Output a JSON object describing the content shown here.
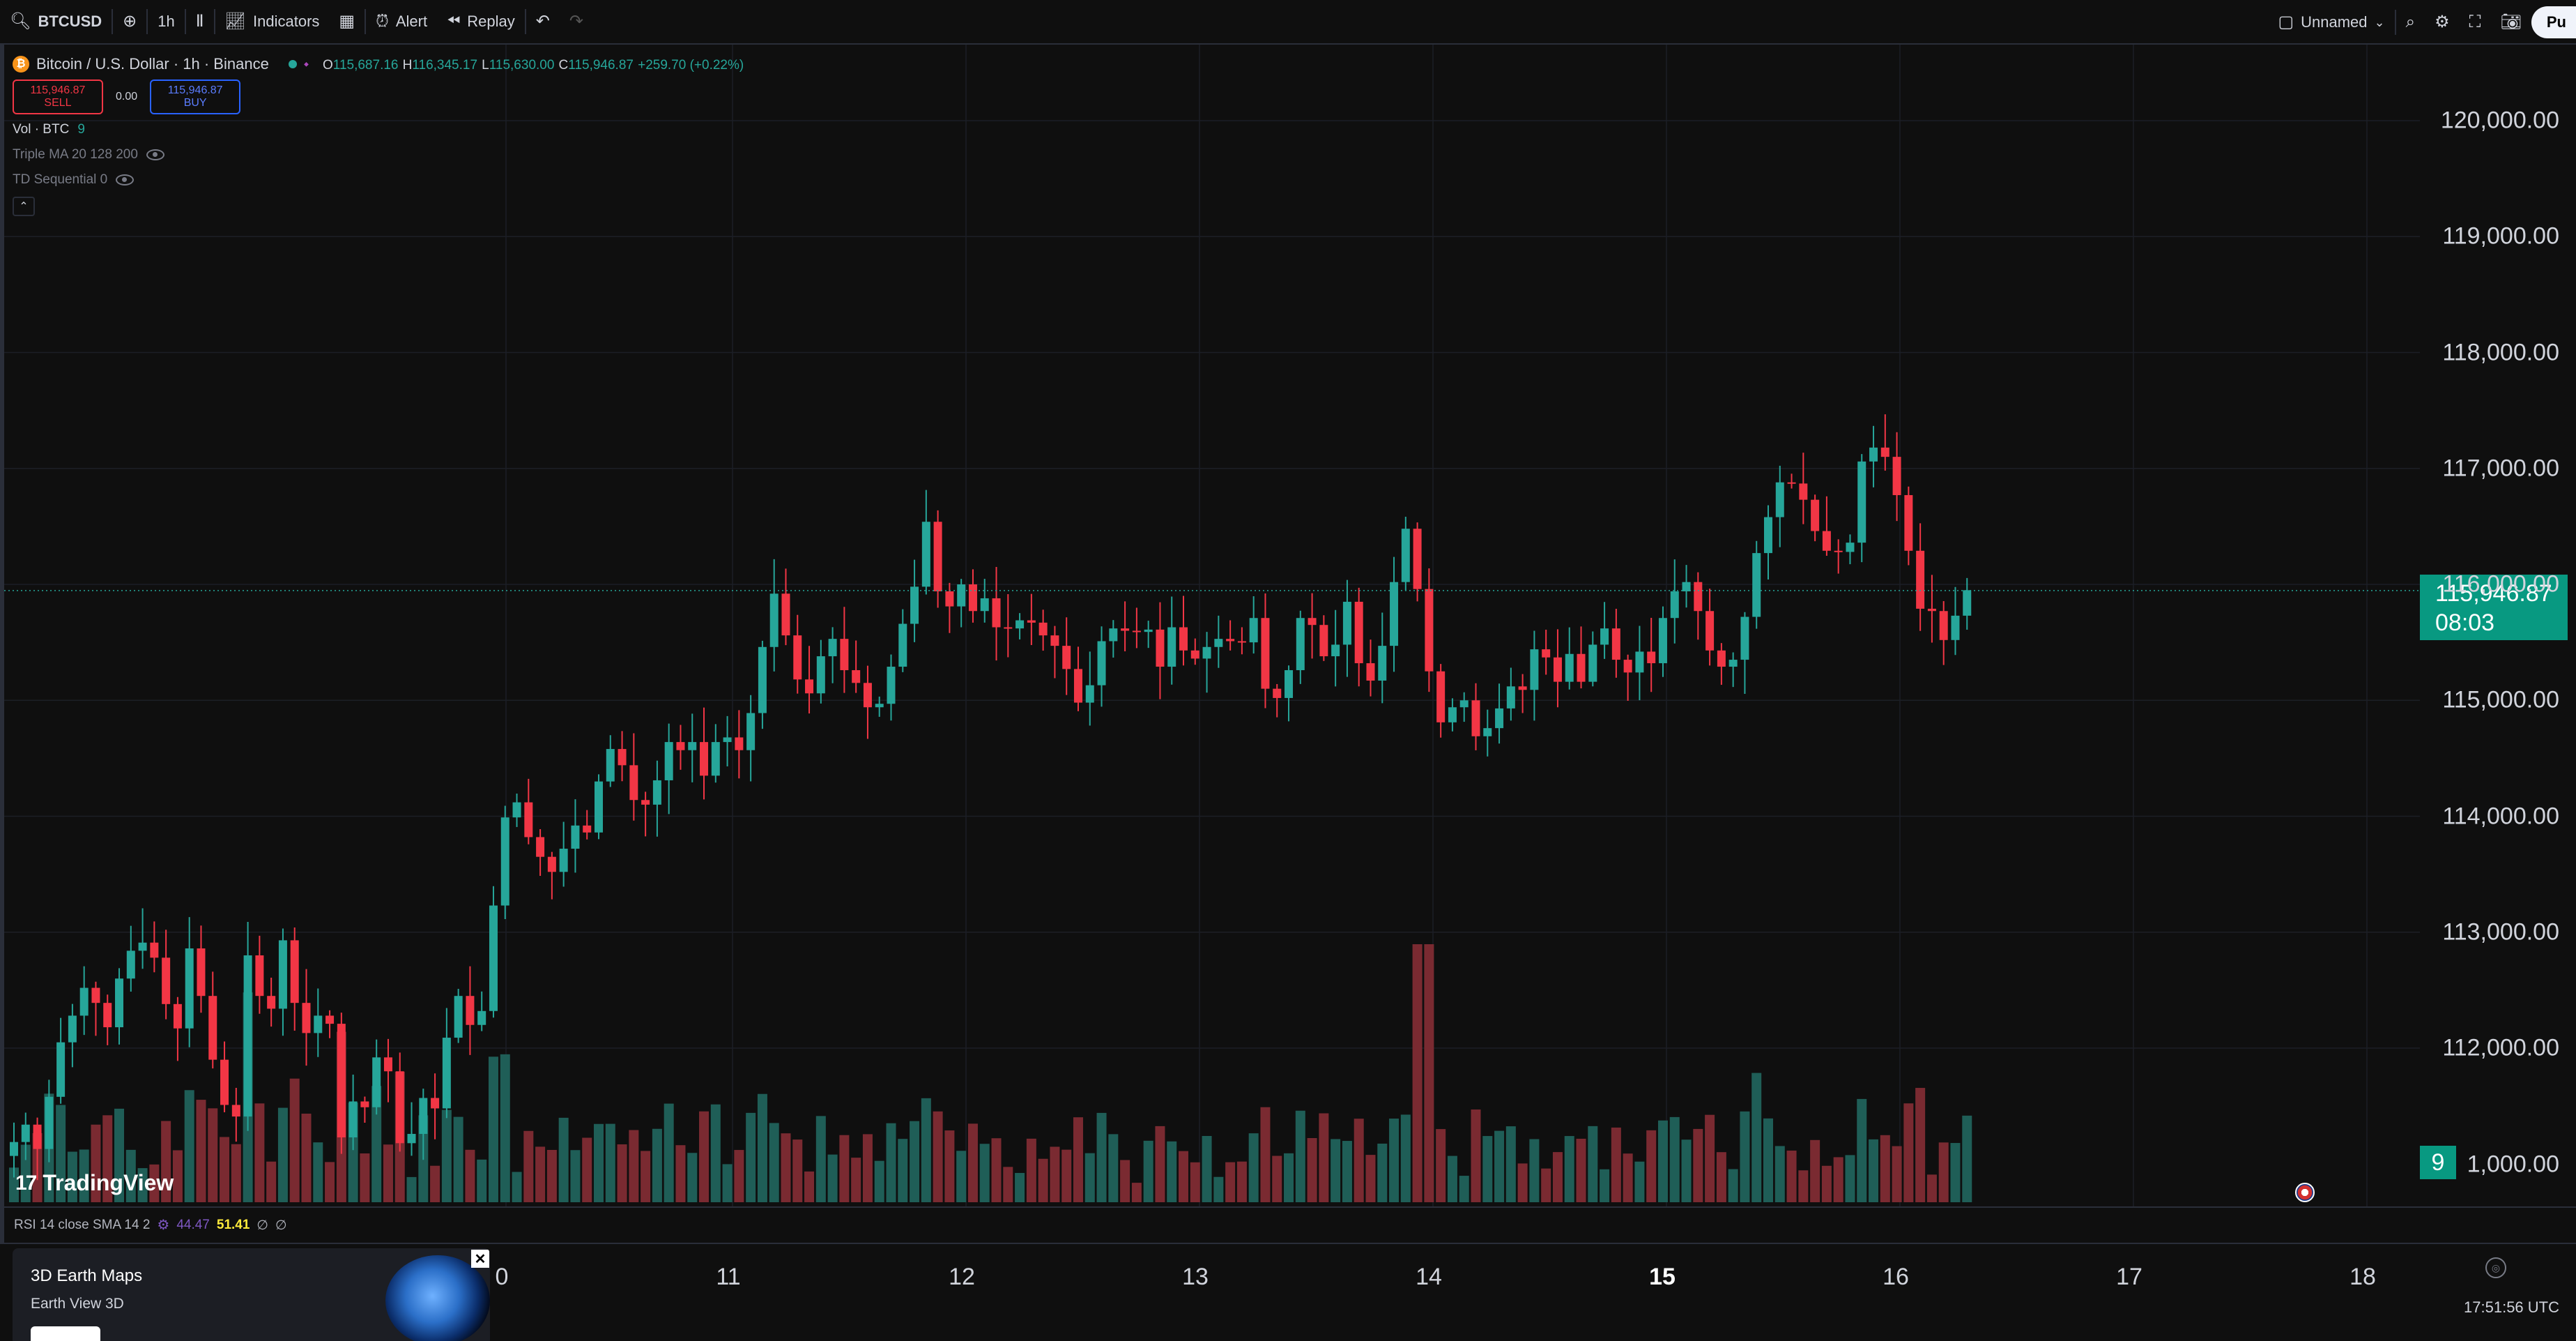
{
  "toolbar": {
    "symbol": "BTCUSD",
    "interval": "1h",
    "indicators_label": "Indicators",
    "alert_label": "Alert",
    "replay_label": "Replay",
    "layout_name": "Unnamed",
    "publish_label": "Pu",
    "icons": [
      "search-icon",
      "add-icon",
      "bar-style-icon",
      "indicators-icon",
      "templates-icon",
      "alert-icon",
      "replay-icon",
      "undo-icon",
      "redo-icon",
      "layout-icon",
      "chevron-down-icon",
      "quick-search-icon",
      "settings-icon",
      "fullscreen-icon",
      "camera-icon"
    ]
  },
  "legend": {
    "title": "Bitcoin / U.S. Dollar · 1h · Binance",
    "o_label": "O",
    "o_value": "115,687.16",
    "h_label": "H",
    "h_value": "116,345.17",
    "l_label": "L",
    "l_value": "115,630.00",
    "c_label": "C",
    "c_value": "115,946.87",
    "change": "+259.70 (+0.22%)",
    "sell_price": "115,946.87",
    "sell_label": "SELL",
    "spread": "0.00",
    "buy_price": "115,946.87",
    "buy_label": "BUY",
    "vol_label": "Vol · BTC",
    "vol_value": "9",
    "ind1": "Triple MA 20 128 200",
    "ind2": "TD Sequential 0"
  },
  "price_scale": {
    "labels": [
      "120,000.00",
      "119,000.00",
      "118,000.00",
      "117,000.00",
      "116,000.00",
      "115,000.00",
      "114,000.00",
      "113,000.00",
      "112,000.00",
      "1,000.00"
    ],
    "last_price": "115,946.87",
    "countdown": "08:03",
    "volume_badge": "9"
  },
  "rsi": {
    "label": "RSI 14 close SMA 14 2",
    "value1": "44.47",
    "value2": "51.41",
    "sym1": "∅",
    "sym2": "∅"
  },
  "time_axis": {
    "labels": [
      "0",
      "11",
      "12",
      "13",
      "14",
      "15",
      "16",
      "17",
      "18"
    ],
    "clock": "17:51:56 UTC"
  },
  "logo": "TradingView",
  "ad": {
    "title": "3D Earth Maps",
    "subtitle": "Earth View 3D"
  },
  "colors": {
    "up": "#26a69a",
    "down": "#f23645",
    "background": "#0f0f0f"
  },
  "chart_data": {
    "type": "candlestick",
    "symbol": "BTCUSD",
    "interval": "1h",
    "y_range": [
      111000,
      120000
    ],
    "last_close": 115946.87,
    "x_labels": [
      "0",
      "11",
      "12",
      "13",
      "14",
      "15",
      "16",
      "17",
      "18"
    ],
    "closes": [
      111190,
      111340,
      111130,
      111580,
      112050,
      112280,
      112520,
      112390,
      112180,
      112600,
      112840,
      112910,
      112780,
      112380,
      112170,
      112860,
      112450,
      111900,
      111510,
      111410,
      112800,
      112450,
      112340,
      112930,
      112390,
      112130,
      112280,
      112210,
      111230,
      111540,
      111490,
      111920,
      111800,
      111180,
      111260,
      111570,
      111480,
      112090,
      112450,
      112200,
      112320,
      113230,
      113990,
      114120,
      113820,
      113650,
      113520,
      113720,
      113920,
      113860,
      114300,
      114580,
      114440,
      114140,
      114100,
      114310,
      114640,
      114570,
      114640,
      114350,
      114640,
      114680,
      114570,
      114890,
      115460,
      115920,
      115560,
      115180,
      115060,
      115380,
      115530,
      115260,
      115150,
      114940,
      114970,
      115290,
      115660,
      115980,
      116540,
      115940,
      115810,
      116000,
      115770,
      115880,
      115630,
      115620,
      115690,
      115670,
      115560,
      115470,
      115270,
      114980,
      115130,
      115510,
      115620,
      115600,
      115590,
      115610,
      115290,
      115630,
      115430,
      115360,
      115460,
      115530,
      115510,
      115500,
      115710,
      115100,
      115020,
      115260,
      115710,
      115650,
      115380,
      115480,
      115850,
      115320,
      115170,
      115470,
      116020,
      116480,
      115960,
      115250,
      114810,
      114940,
      115000,
      114690,
      114760,
      114930,
      115120,
      115090,
      115440,
      115370,
      115160,
      115400,
      115160,
      115480,
      115620,
      115350,
      115240,
      115420,
      115320,
      115710,
      115940,
      116020,
      115770,
      115430,
      115290,
      115350,
      115720,
      116270,
      116580,
      116880,
      116870,
      116730,
      116460,
      116290,
      116280,
      116360,
      117060,
      117180,
      117100,
      116770,
      116290,
      115790,
      115770,
      115520,
      115730,
      115950
    ]
  }
}
